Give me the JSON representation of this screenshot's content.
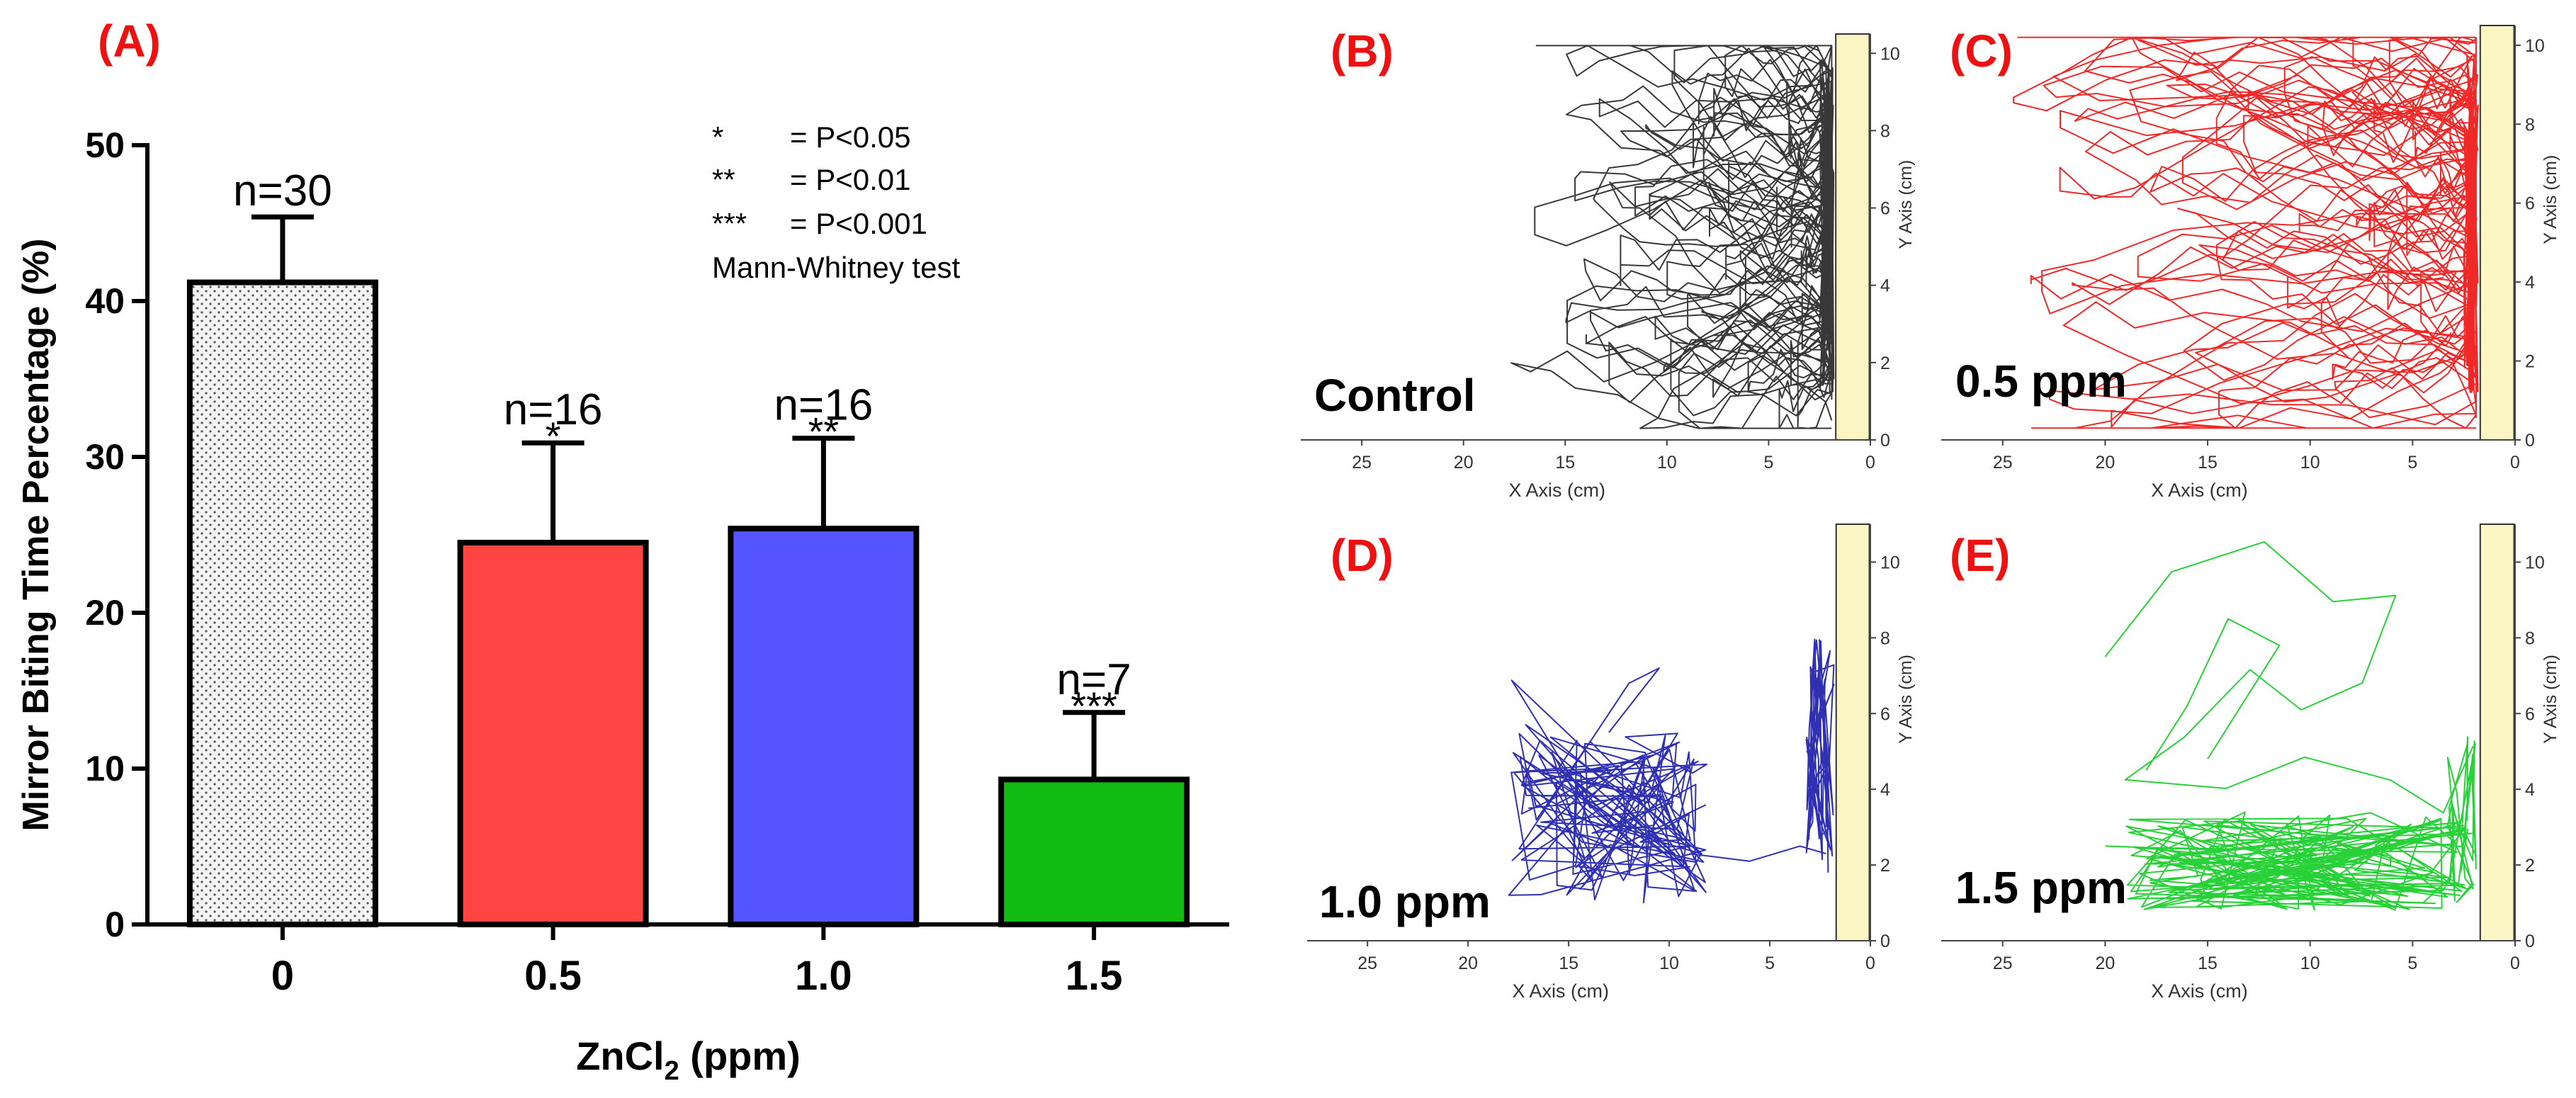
{
  "panel_labels": {
    "A": "(A)",
    "B": "(B)",
    "C": "(C)",
    "D": "(D)",
    "E": "(E)"
  },
  "chart_data": [
    {
      "type": "bar",
      "panel": "A",
      "ylabel": "Mirror Biting Time Percentage (%)",
      "xlabel": "ZnCl₂ (ppm)",
      "xlabel_base": "ZnCl",
      "xlabel_sub": "2",
      "xlabel_tail": " (ppm)",
      "categories": [
        "0",
        "0.5",
        "1.0",
        "1.5"
      ],
      "values": [
        41.2,
        24.5,
        25.4,
        9.3
      ],
      "errors": [
        4.2,
        6.4,
        5.8,
        4.3
      ],
      "n_labels": [
        "n=30",
        "n=16",
        "n=16",
        "n=7"
      ],
      "significance": [
        "",
        "*",
        "**",
        "***"
      ],
      "colors": [
        "#f2f2f2",
        "#ff4444",
        "#5555ff",
        "#11bb11"
      ],
      "bar_patterns": [
        "dotted",
        "solid",
        "solid",
        "solid"
      ],
      "ylim": [
        0,
        50
      ],
      "yticks": [
        0,
        10,
        20,
        30,
        40,
        50
      ],
      "legend": {
        "rows": [
          {
            "symbol": "*",
            "text": "= P<0.05"
          },
          {
            "symbol": "**",
            "text": "= P<0.01"
          },
          {
            "symbol": "***",
            "text": "= P<0.001"
          }
        ],
        "note": "Mann-Whitney test"
      }
    },
    {
      "type": "line",
      "panel": "B",
      "label": "Control",
      "color": "#222222",
      "pattern": "spread",
      "xlabel": "X Axis (cm)",
      "ylabel": "Y Axis (cm)",
      "xlim": [
        28,
        0
      ],
      "ylim": [
        0,
        10.5
      ],
      "xticks": [
        25,
        20,
        15,
        10,
        5,
        0
      ],
      "yticks": [
        0,
        2,
        4,
        6,
        8,
        10
      ]
    },
    {
      "type": "line",
      "panel": "C",
      "label": "0.5 ppm",
      "color": "#ee1111",
      "pattern": "spread",
      "xlabel": "X Axis (cm)",
      "ylabel": "Y Axis (cm)",
      "xlim": [
        28,
        0
      ],
      "ylim": [
        0,
        10.5
      ],
      "xticks": [
        25,
        20,
        15,
        10,
        5,
        0
      ],
      "yticks": [
        0,
        2,
        4,
        6,
        8,
        10
      ]
    },
    {
      "type": "line",
      "panel": "D",
      "label": "1.0 ppm",
      "color": "#1a1aaa",
      "pattern": "cluster",
      "xlabel": "X Axis (cm)",
      "ylabel": "Y Axis (cm)",
      "xlim": [
        28,
        0
      ],
      "ylim": [
        0,
        11
      ],
      "xticks": [
        25,
        20,
        15,
        10,
        5,
        0
      ],
      "yticks": [
        0,
        2,
        4,
        6,
        8,
        10
      ]
    },
    {
      "type": "line",
      "panel": "E",
      "label": "1.5 ppm",
      "color": "#11cc22",
      "pattern": "bottom",
      "xlabel": "X Axis (cm)",
      "ylabel": "Y Axis (cm)",
      "xlim": [
        28,
        0
      ],
      "ylim": [
        0,
        11
      ],
      "xticks": [
        25,
        20,
        15,
        10,
        5,
        0
      ],
      "yticks": [
        0,
        2,
        4,
        6,
        8,
        10
      ]
    }
  ]
}
